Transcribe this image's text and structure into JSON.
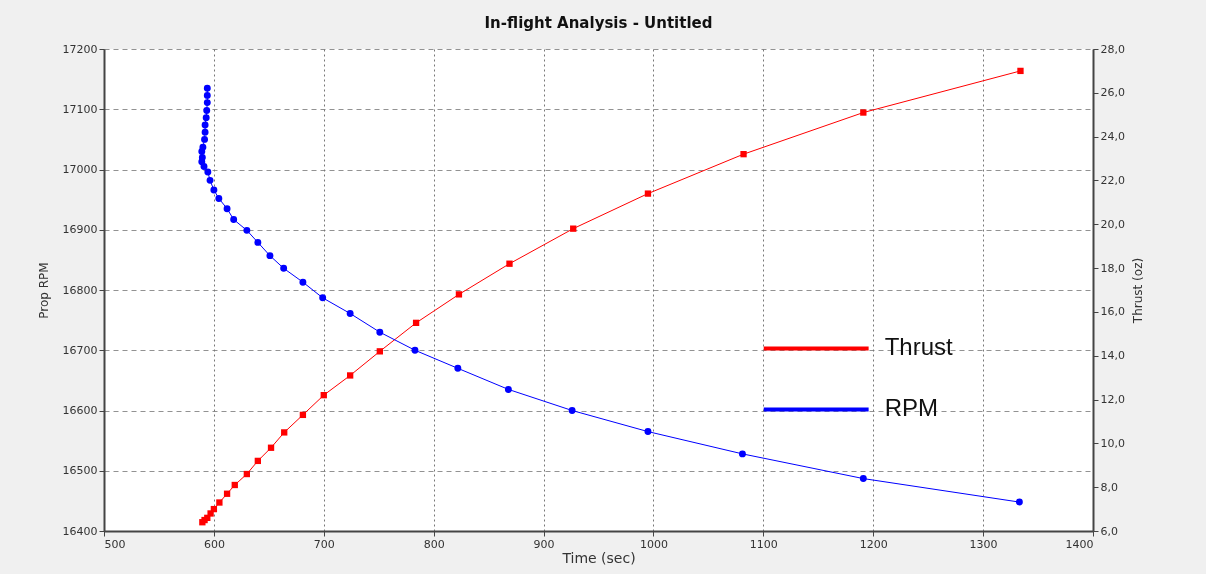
{
  "chart_data": {
    "type": "line",
    "title": "In-flight Analysis - Untitled",
    "xlabel": "Time (sec)",
    "ylabel": "Prop RPM",
    "y2label": "Thrust (oz)",
    "xlim": [
      500,
      1400
    ],
    "xticks": [
      500,
      600,
      700,
      800,
      900,
      1000,
      1100,
      1200,
      1300,
      1400
    ],
    "ylim": [
      16400,
      17200
    ],
    "yticks": [
      16400,
      16500,
      16600,
      16700,
      16800,
      16900,
      17000,
      17100,
      17200
    ],
    "y2lim": [
      6,
      28
    ],
    "y2ticks": [
      {
        "value": 6,
        "label": "6,0"
      },
      {
        "value": 8,
        "label": "8,0"
      },
      {
        "value": 10,
        "label": "10,0"
      },
      {
        "value": 12,
        "label": "12,0"
      },
      {
        "value": 14,
        "label": "14,0"
      },
      {
        "value": 16,
        "label": "16,0"
      },
      {
        "value": 18,
        "label": "18,0"
      },
      {
        "value": 20,
        "label": "20,0"
      },
      {
        "value": 22,
        "label": "22,0"
      },
      {
        "value": 24,
        "label": "24,0"
      },
      {
        "value": 26,
        "label": "26,0"
      },
      {
        "value": 28,
        "label": "28,0"
      }
    ],
    "grid": true,
    "legend": "right",
    "line_style": "solid",
    "series": [
      {
        "name": "Thrust",
        "color": "#ff0000",
        "axis": "y2",
        "marker": "square",
        "x": [
          589.5,
          591.5,
          594,
          597,
          600,
          605,
          612,
          619,
          630,
          640,
          652,
          664,
          681,
          700,
          724,
          751,
          784,
          823,
          869,
          927,
          995,
          1082,
          1191,
          1334
        ],
        "values": [
          6.4,
          6.5,
          6.6,
          6.8,
          7.0,
          7.3,
          7.7,
          8.1,
          8.6,
          9.2,
          9.8,
          10.5,
          11.3,
          12.2,
          13.1,
          14.2,
          15.5,
          16.8,
          18.2,
          19.8,
          21.4,
          23.2,
          25.1,
          27.0
        ]
      },
      {
        "name": "RPM",
        "color": "#0000ff",
        "axis": "y",
        "marker": "circle",
        "x": [
          594,
          594,
          594,
          593.5,
          593,
          592,
          592,
          591.5,
          590,
          589,
          589.5,
          589,
          591,
          594.5,
          596.5,
          600,
          604.5,
          612,
          618,
          630,
          640,
          651,
          663.5,
          681,
          699,
          724,
          751,
          783,
          822,
          868,
          926,
          995,
          1081,
          1191,
          1333
        ],
        "values": [
          17135,
          17123,
          17111,
          17098,
          17086,
          17074,
          17062,
          17050,
          17037,
          17030,
          17020,
          17013,
          17005,
          16996,
          16982,
          16966,
          16952,
          16935,
          16917,
          16899,
          16879,
          16857,
          16836,
          16813,
          16787,
          16761,
          16730,
          16700,
          16670,
          16635,
          16600,
          16565,
          16528,
          16487,
          16448
        ]
      }
    ]
  }
}
